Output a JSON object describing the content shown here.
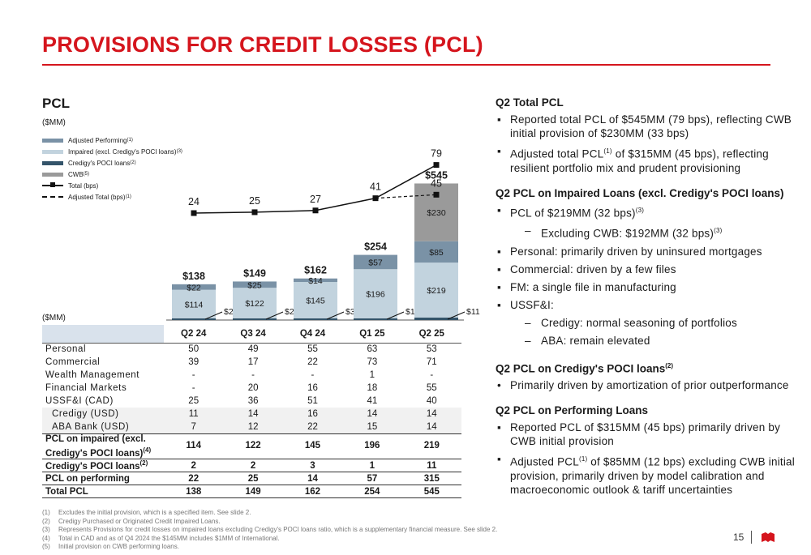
{
  "title": "PROVISIONS FOR CREDIT LOSSES (PCL)",
  "pcl_heading": "PCL",
  "mm_label_top": "($MM)",
  "mm_label_mid": "($MM)",
  "legend": [
    {
      "label": "Adjusted Performing",
      "sup": "(1)",
      "color": "#7a92a6",
      "kind": "swatch"
    },
    {
      "label": "Impaired (excl. Credigy's POCI loans)",
      "sup": "(3)",
      "color": "#c2d3de",
      "kind": "swatch"
    },
    {
      "label": "Credigy's POCI loans",
      "sup": "(2)",
      "color": "#34546a",
      "kind": "swatch"
    },
    {
      "label": "CWB",
      "sup": "(5)",
      "color": "#9a9a9a",
      "kind": "swatch"
    },
    {
      "label": "Total (bps)",
      "sup": "",
      "color": "#111111",
      "kind": "line"
    },
    {
      "label": "Adjusted Total (bps)",
      "sup": "(1)",
      "color": "#111111",
      "kind": "dash"
    }
  ],
  "chart_data": {
    "type": "bar",
    "categories": [
      "Q2 24",
      "Q3 24",
      "Q4 24",
      "Q1 25",
      "Q2 25"
    ],
    "series": [
      {
        "name": "Credigy's POCI loans",
        "values": [
          2,
          2,
          3,
          1,
          11
        ],
        "labels": [
          "$2",
          "$2",
          "$3",
          "$1",
          "$11"
        ],
        "color": "#34546a"
      },
      {
        "name": "Impaired (excl. Credigy's POCI loans)",
        "values": [
          114,
          122,
          145,
          196,
          219
        ],
        "labels": [
          "$114",
          "$122",
          "$145",
          "$196",
          "$219"
        ],
        "color": "#c2d3de"
      },
      {
        "name": "Adjusted Performing",
        "values": [
          22,
          25,
          14,
          57,
          85
        ],
        "labels": [
          "$22",
          "$25",
          "$14",
          "$57",
          "$85"
        ],
        "color": "#7a92a6"
      },
      {
        "name": "CWB",
        "values": [
          0,
          0,
          0,
          0,
          230
        ],
        "labels": [
          "",
          "",
          "",
          "",
          "$230"
        ],
        "color": "#9a9a9a"
      }
    ],
    "totals": [
      138,
      149,
      162,
      254,
      545
    ],
    "total_labels": [
      "$138",
      "$149",
      "$162",
      "$254",
      "$545"
    ],
    "total_bps": {
      "name": "Total (bps)",
      "values": [
        24,
        25,
        27,
        41,
        79
      ]
    },
    "adjusted_total_bps": {
      "name": "Adjusted Total (bps)",
      "values": [
        null,
        null,
        null,
        41,
        45
      ],
      "labels": [
        "",
        "",
        "",
        "",
        "45"
      ]
    },
    "ylabel": "($MM)"
  },
  "table": {
    "header": [
      "Q2 24",
      "Q3 24",
      "Q4 24",
      "Q1 25",
      "Q2 25"
    ],
    "rows": [
      {
        "label": "Personal",
        "values": [
          "50",
          "49",
          "55",
          "63",
          "53"
        ],
        "style": ""
      },
      {
        "label": "Commercial",
        "values": [
          "39",
          "17",
          "22",
          "73",
          "71"
        ],
        "style": ""
      },
      {
        "label": "Wealth Management",
        "values": [
          "-",
          "-",
          "-",
          "1",
          "-"
        ],
        "style": ""
      },
      {
        "label": "Financial Markets",
        "values": [
          "-",
          "20",
          "16",
          "18",
          "55"
        ],
        "style": ""
      },
      {
        "label": "USSF&I (CAD)",
        "values": [
          "25",
          "36",
          "51",
          "41",
          "40"
        ],
        "style": ""
      },
      {
        "label": "Credigy (USD)",
        "values": [
          "11",
          "14",
          "16",
          "14",
          "14"
        ],
        "style": "sub shade"
      },
      {
        "label": "ABA Bank (USD)",
        "values": [
          "7",
          "12",
          "22",
          "15",
          "14"
        ],
        "style": "sub shade"
      }
    ],
    "impaired_label_1": "PCL on impaired (excl.",
    "impaired_label_2": "Credigy's POCI loans)",
    "impaired_sup": "(4)",
    "impaired_values": [
      "114",
      "122",
      "145",
      "196",
      "219"
    ],
    "poci_label": "Credigy's POCI loans",
    "poci_sup": "(2)",
    "poci_values": [
      "2",
      "2",
      "3",
      "1",
      "11"
    ],
    "performing_label": "PCL on performing",
    "performing_values": [
      "22",
      "25",
      "14",
      "57",
      "315"
    ],
    "total_label": "Total PCL",
    "total_values": [
      "138",
      "149",
      "162",
      "254",
      "545"
    ]
  },
  "right": {
    "s1_title": "Q2 Total PCL",
    "s1_b1": "Reported total PCL of $545MM (79 bps), reflecting CWB initial provision of $230MM (33 bps)",
    "s1_b2_pre": "Adjusted total PCL",
    "s1_b2_sup": "(1)",
    "s1_b2_post": " of $315MM (45 bps), reflecting resilient portfolio mix and prudent provisioning",
    "s2_title": "Q2 PCL on Impaired Loans (excl. Credigy's POCI loans)",
    "s2_b1_pre": "PCL of $219MM (32 bps)",
    "s2_b1_sup": "(3)",
    "s2_d1_pre": "Excluding CWB: $192MM (32 bps)",
    "s2_d1_sup": "(3)",
    "s2_b2": "Personal: primarily driven by uninsured mortgages",
    "s2_b3": "Commercial: driven by a few files",
    "s2_b4": "FM: a single file in manufacturing",
    "s2_b5": "USSF&I:",
    "s2_d2": "Credigy: normal seasoning of portfolios",
    "s2_d3": "ABA: remain elevated",
    "s3_title": "Q2 PCL on Credigy's POCI loans",
    "s3_sup": "(2)",
    "s3_b1": "Primarily driven by amortization of prior outperformance",
    "s4_title": "Q2 PCL on Performing Loans",
    "s4_b1": "Reported PCL of $315MM (45 bps) primarily driven by CWB initial provision",
    "s4_b2_pre": "Adjusted PCL",
    "s4_b2_sup": "(1)",
    "s4_b2_post": " of $85MM (12 bps) excluding CWB initial provision, primarily driven by model calibration and macroeconomic outlook & tariff uncertainties",
    "bullet_square": "▪",
    "bullet_dot": "•",
    "dash": "–"
  },
  "footnotes": [
    {
      "n": "(1)",
      "t": "Excludes the initial provision, which is a specified item. See slide 2."
    },
    {
      "n": "(2)",
      "t": "Credigy Purchased or Originated Credit Impaired Loans."
    },
    {
      "n": "(3)",
      "t": "Represents Provisions for credit losses on impaired loans excluding Credigy's POCI loans ratio, which is a supplementary financial measure. See slide 2."
    },
    {
      "n": "(4)",
      "t": "Total in CAD and as of Q4 2024 the $145MM includes $1MM of International."
    },
    {
      "n": "(5)",
      "t": "Initial provision on CWB performing loans."
    }
  ],
  "page_number": "15",
  "colors": {
    "accent": "#d5151d"
  }
}
